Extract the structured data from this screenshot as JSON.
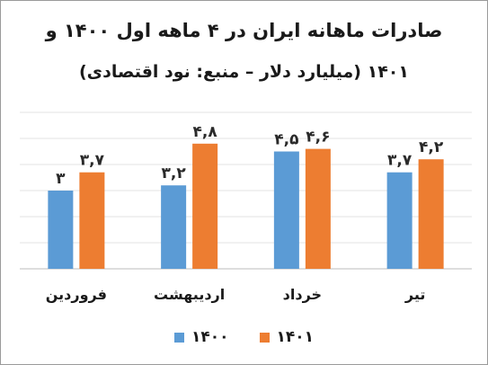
{
  "chart_data": {
    "type": "bar",
    "title": "صادرات ماهانه ایران در ۴ ماهه اول ۱۴۰۰ و",
    "subtitle": "۱۴۰۱ (میلیارد دلار – منبع: نود اقتصادی)",
    "categories": [
      "تیر",
      "خرداد",
      "اردیبهشت",
      "فروردین"
    ],
    "category_order": "right-to-left",
    "series": [
      {
        "name": "۱۴۰۰",
        "color": "#5b9bd5",
        "values": [
          3.7,
          4.5,
          3.2,
          3.0
        ],
        "labels": [
          "۳,۷",
          "۴,۵",
          "۳,۲",
          "۳"
        ]
      },
      {
        "name": "۱۴۰۱",
        "color": "#ed7d31",
        "values": [
          4.2,
          4.6,
          4.8,
          3.7
        ],
        "labels": [
          "۴,۲",
          "۴,۶",
          "۴,۸",
          "۳,۷"
        ]
      }
    ],
    "ylim": [
      0,
      6
    ],
    "grid": true,
    "legend_position": "bottom"
  }
}
